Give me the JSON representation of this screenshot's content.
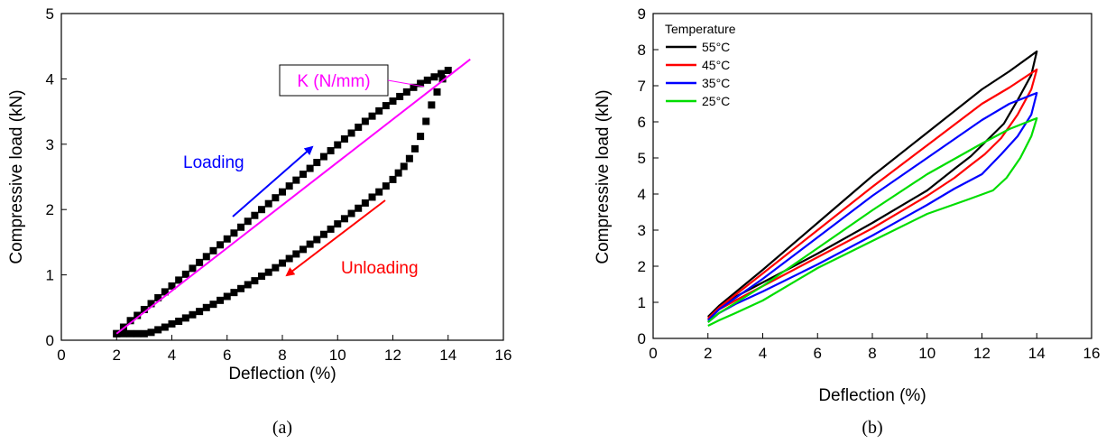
{
  "chart_data": [
    {
      "type": "scatter",
      "xlabel": "Deflection (%)",
      "ylabel": "Compressive load (kN)",
      "xlim": [
        0,
        16
      ],
      "ylim": [
        0,
        5
      ],
      "xticks": [
        0,
        2,
        4,
        6,
        8,
        10,
        12,
        14,
        16
      ],
      "yticks": [
        0,
        1,
        2,
        3,
        4,
        5
      ],
      "caption": "(a)",
      "series": [
        {
          "marker_color": "#000000",
          "x": [
            2.0,
            2.25,
            2.5,
            2.75,
            3.0,
            3.25,
            3.5,
            3.75,
            4.0,
            4.25,
            4.5,
            4.75,
            5.0,
            5.25,
            5.5,
            5.75,
            6.0,
            6.25,
            6.5,
            6.75,
            7.0,
            7.25,
            7.5,
            7.75,
            8.0,
            8.25,
            8.5,
            8.75,
            9.0,
            9.25,
            9.5,
            9.75,
            10.0,
            10.25,
            10.5,
            10.75,
            11.0,
            11.25,
            11.5,
            11.75,
            12.0,
            12.25,
            12.5,
            12.75,
            13.0,
            13.25,
            13.5,
            13.75,
            14.0,
            13.8,
            13.6,
            13.4,
            13.2,
            13.0,
            12.8,
            12.6,
            12.4,
            12.2,
            12.0,
            11.75,
            11.5,
            11.25,
            11.0,
            10.75,
            10.5,
            10.25,
            10.0,
            9.75,
            9.5,
            9.25,
            9.0,
            8.75,
            8.5,
            8.25,
            8.0,
            7.75,
            7.5,
            7.25,
            7.0,
            6.75,
            6.5,
            6.25,
            6.0,
            5.75,
            5.5,
            5.25,
            5.0,
            4.75,
            4.5,
            4.25,
            4.0,
            3.75,
            3.5,
            3.25,
            3.0,
            2.75,
            2.5,
            2.25,
            2.0
          ],
          "y": [
            0.1,
            0.2,
            0.3,
            0.38,
            0.47,
            0.56,
            0.65,
            0.74,
            0.83,
            0.92,
            1.01,
            1.1,
            1.19,
            1.28,
            1.37,
            1.46,
            1.55,
            1.64,
            1.73,
            1.82,
            1.91,
            2.0,
            2.09,
            2.18,
            2.27,
            2.36,
            2.45,
            2.54,
            2.63,
            2.72,
            2.81,
            2.9,
            2.99,
            3.08,
            3.17,
            3.26,
            3.35,
            3.43,
            3.51,
            3.59,
            3.66,
            3.73,
            3.8,
            3.87,
            3.93,
            3.98,
            4.03,
            4.08,
            4.13,
            4.0,
            3.8,
            3.6,
            3.35,
            3.12,
            2.93,
            2.78,
            2.66,
            2.56,
            2.46,
            2.36,
            2.27,
            2.19,
            2.1,
            2.02,
            1.94,
            1.86,
            1.78,
            1.7,
            1.62,
            1.54,
            1.47,
            1.39,
            1.32,
            1.25,
            1.18,
            1.11,
            1.04,
            0.98,
            0.91,
            0.85,
            0.79,
            0.73,
            0.67,
            0.61,
            0.55,
            0.5,
            0.44,
            0.39,
            0.34,
            0.29,
            0.25,
            0.2,
            0.16,
            0.12,
            0.1,
            0.1,
            0.1,
            0.1,
            0.1
          ]
        }
      ],
      "fit_line": {
        "color": "#ff00ff",
        "x": [
          2.0,
          14.8
        ],
        "y": [
          0.1,
          4.3
        ]
      },
      "annotations": [
        {
          "text": "K (N/mm)",
          "color": "#ff00ff",
          "boxed": true
        },
        {
          "text": "Loading",
          "color": "#0000ff"
        },
        {
          "text": "Unloading",
          "color": "#ff0000"
        }
      ]
    },
    {
      "type": "line",
      "xlabel": "Deflection (%)",
      "ylabel": "Compressive load (kN)",
      "xlim": [
        0,
        16
      ],
      "ylim": [
        0,
        9
      ],
      "xticks": [
        0,
        2,
        4,
        6,
        8,
        10,
        12,
        14,
        16
      ],
      "yticks": [
        0,
        1,
        2,
        3,
        4,
        5,
        6,
        7,
        8,
        9
      ],
      "caption": "(b)",
      "legend_title": "Temperature",
      "legend_position": "top-left",
      "series": [
        {
          "name": "55°C",
          "color": "#000000",
          "x": [
            2.0,
            2.4,
            4.0,
            6.0,
            8.0,
            10.0,
            12.0,
            13.0,
            14.0,
            13.8,
            13.3,
            12.8,
            12.2,
            11.6,
            11.0,
            10.0,
            8.0,
            6.0,
            4.0,
            3.0,
            2.4,
            2.0
          ],
          "y": [
            0.6,
            0.9,
            1.9,
            3.2,
            4.5,
            5.7,
            6.9,
            7.4,
            7.95,
            7.3,
            6.6,
            5.95,
            5.5,
            5.05,
            4.7,
            4.1,
            3.2,
            2.35,
            1.55,
            1.15,
            0.85,
            0.55
          ]
        },
        {
          "name": "45°C",
          "color": "#ff0000",
          "x": [
            2.0,
            2.4,
            4.0,
            6.0,
            8.0,
            10.0,
            12.0,
            13.0,
            14.0,
            13.8,
            13.3,
            12.7,
            12.1,
            11.5,
            11.0,
            10.0,
            8.0,
            6.0,
            4.0,
            3.0,
            2.4,
            2.0
          ],
          "y": [
            0.55,
            0.85,
            1.8,
            3.0,
            4.2,
            5.35,
            6.5,
            6.95,
            7.45,
            6.9,
            6.2,
            5.55,
            5.1,
            4.75,
            4.45,
            3.95,
            3.05,
            2.25,
            1.45,
            1.05,
            0.8,
            0.5
          ]
        },
        {
          "name": "35°C",
          "color": "#0000ff",
          "x": [
            2.0,
            2.4,
            4.0,
            6.0,
            8.0,
            10.0,
            12.0,
            13.0,
            14.0,
            13.8,
            13.3,
            12.7,
            12.0,
            11.5,
            11.0,
            10.0,
            8.0,
            6.0,
            4.0,
            3.0,
            2.4,
            2.0
          ],
          "y": [
            0.5,
            0.8,
            1.65,
            2.8,
            3.95,
            5.0,
            6.05,
            6.5,
            6.8,
            6.2,
            5.6,
            5.1,
            4.55,
            4.35,
            4.15,
            3.7,
            2.85,
            2.05,
            1.3,
            0.95,
            0.7,
            0.45
          ]
        },
        {
          "name": "25°C",
          "color": "#00dd00",
          "x": [
            2.0,
            2.4,
            4.0,
            6.0,
            8.0,
            10.0,
            12.0,
            13.0,
            14.0,
            13.8,
            13.4,
            12.9,
            12.4,
            11.5,
            10.0,
            8.0,
            6.0,
            4.0,
            3.0,
            2.4,
            2.0
          ],
          "y": [
            0.45,
            0.7,
            1.45,
            2.5,
            3.55,
            4.55,
            5.4,
            5.8,
            6.1,
            5.6,
            5.0,
            4.45,
            4.1,
            3.85,
            3.45,
            2.7,
            1.95,
            1.05,
            0.7,
            0.5,
            0.35
          ]
        }
      ]
    }
  ]
}
